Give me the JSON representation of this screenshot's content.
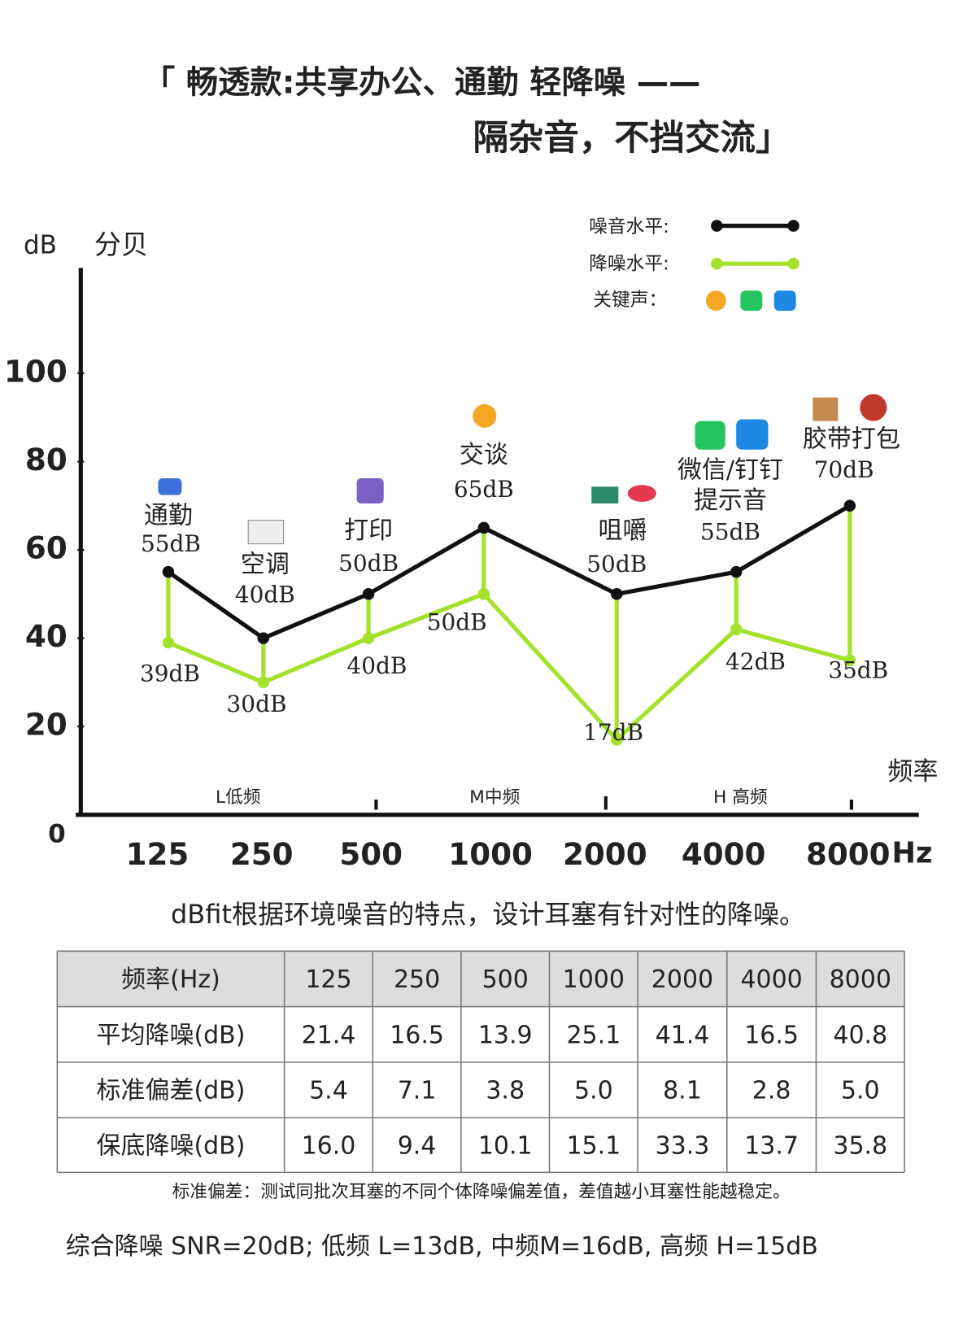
{
  "header": {
    "title_line1": "「 畅透款:共享办公、通勤 轻降噪 ——",
    "title_line2": "隔杂音，不挡交流」"
  },
  "chart_data": {
    "type": "line",
    "y_axis_label": "dB",
    "y_axis_label_cn": "分贝",
    "x_axis_label": "频率",
    "x_unit": "Hz",
    "categories": [
      "125",
      "250",
      "500",
      "1000",
      "2000",
      "4000",
      "8000"
    ],
    "annotations": [
      [
        "通勤"
      ],
      [
        "空调"
      ],
      [
        "打印"
      ],
      [
        "交谈"
      ],
      [
        "咀嚼"
      ],
      [
        "微信/钉钉",
        "提示音"
      ],
      [
        "胶带打包"
      ]
    ],
    "bands": [
      "L低频",
      "M中频",
      "H 高频"
    ],
    "series": [
      {
        "name": "噪音水平:",
        "color": "#111111",
        "values": [
          55,
          40,
          50,
          65,
          50,
          55,
          70
        ],
        "value_labels": [
          "55dB",
          "40dB",
          "50dB",
          "65dB",
          "50dB",
          "55dB",
          "70dB"
        ]
      },
      {
        "name": "降噪水平:",
        "color": "#a3e22a",
        "values": [
          39,
          30,
          40,
          50,
          17,
          42,
          35
        ],
        "value_labels": [
          "39dB",
          "30dB",
          "40dB",
          "50dB",
          "17dB",
          "42dB",
          "35dB"
        ]
      }
    ],
    "legend_key_label": "关键声：",
    "ylim": [
      0,
      125
    ],
    "yticks": [
      0,
      20,
      40,
      60,
      80,
      100
    ],
    "grid": false
  },
  "caption": "dBfit根据环境噪音的特点，设计耳塞有针对性的降噪。",
  "table": {
    "header": [
      "频率(Hz)",
      "125",
      "250",
      "500",
      "1000",
      "2000",
      "4000",
      "8000"
    ],
    "rows": [
      [
        "平均降噪(dB)",
        "21.4",
        "16.5",
        "13.9",
        "25.1",
        "41.4",
        "16.5",
        "40.8"
      ],
      [
        "标准偏差(dB)",
        "5.4",
        "7.1",
        "3.8",
        "5.0",
        "8.1",
        "2.8",
        "5.0"
      ],
      [
        "保底降噪(dB)",
        "16.0",
        "9.4",
        "10.1",
        "15.1",
        "33.3",
        "13.7",
        "35.8"
      ]
    ]
  },
  "note": "标准偏差：测试同批次耳塞的不同个体降噪偏差值，差值越小耳塞性能越稳定。",
  "footer": "综合降噪 SNR=20dB; 低频 L=13dB, 中频M=16dB, 高频 H=15dB"
}
